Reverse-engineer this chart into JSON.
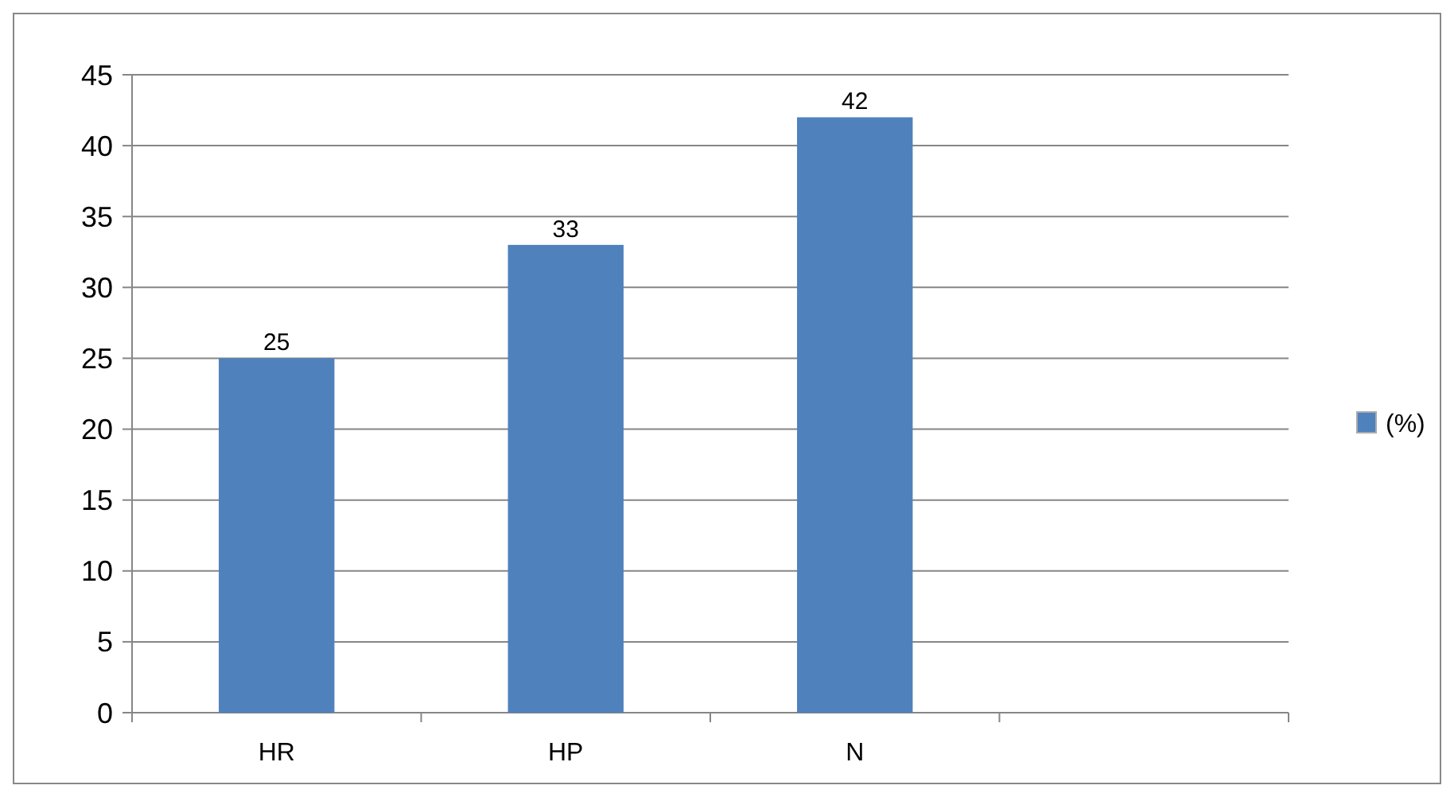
{
  "chart_data": {
    "type": "bar",
    "categories": [
      "HR",
      "HP",
      "N",
      null
    ],
    "series": [
      {
        "name": "(%)",
        "color": "#4f81bd",
        "values": [
          25,
          33,
          42,
          null
        ]
      }
    ],
    "ylim": [
      0,
      45
    ],
    "yticks": [
      0,
      5,
      10,
      15,
      20,
      25,
      30,
      35,
      40,
      45
    ],
    "grid": "y",
    "legend": "right",
    "data_labels": true
  }
}
